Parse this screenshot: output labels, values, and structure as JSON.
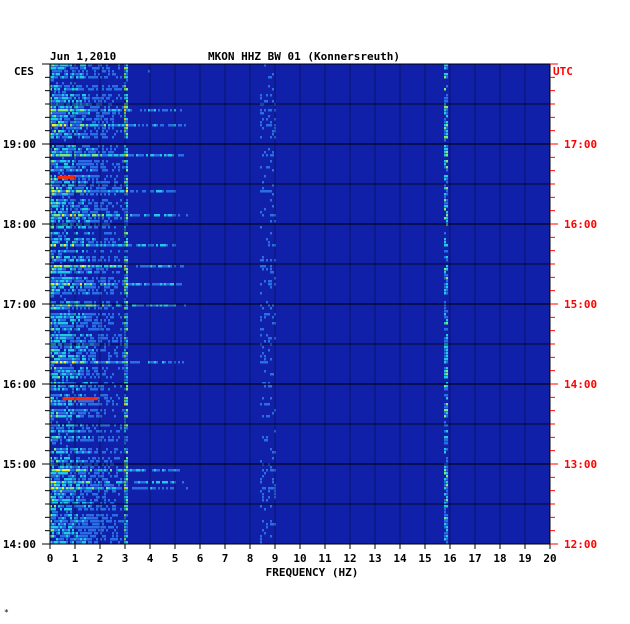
{
  "header": {
    "date": "Jun 1,2010",
    "station": "MKON HHZ BW 01 (Konnersreuth)",
    "left_tz": "CES",
    "right_tz": "UTC"
  },
  "footer_mark": "*",
  "colors": {
    "background_blue": "#1020a8",
    "grid": "#000000",
    "utc_label": "#ff0000",
    "ces_label": "#000000"
  },
  "chart_data": {
    "type": "heatmap",
    "title": "MKON HHZ BW 01 (Konnersreuth)",
    "xlabel": "FREQUENCY (HZ)",
    "ylabel": "",
    "xlim": [
      0,
      20
    ],
    "x_ticks": [
      "0",
      "1",
      "2",
      "3",
      "4",
      "5",
      "6",
      "7",
      "8",
      "9",
      "10",
      "11",
      "12",
      "13",
      "14",
      "15",
      "16",
      "17",
      "18",
      "19",
      "20"
    ],
    "left_ticks": [
      "19:00",
      "18:00",
      "17:00",
      "16:00",
      "15:00",
      "14:00"
    ],
    "right_ticks": [
      "17:00",
      "16:00",
      "15:00",
      "14:00",
      "13:00",
      "12:00"
    ],
    "time_range_utc": [
      "12:00",
      "18:00"
    ],
    "colormap": [
      "#1020a8",
      "#2a6ee6",
      "#22c8e6",
      "#7ee87e",
      "#f0f020",
      "#ff2a00"
    ],
    "persistent_lines_hz": [
      3.0,
      15.8
    ],
    "hot_events": [
      {
        "time_ces": "18:35",
        "freq_hz": [
          0.3,
          1.0
        ]
      },
      {
        "time_ces": "15:49",
        "freq_hz": [
          0.5,
          1.9
        ]
      }
    ]
  }
}
